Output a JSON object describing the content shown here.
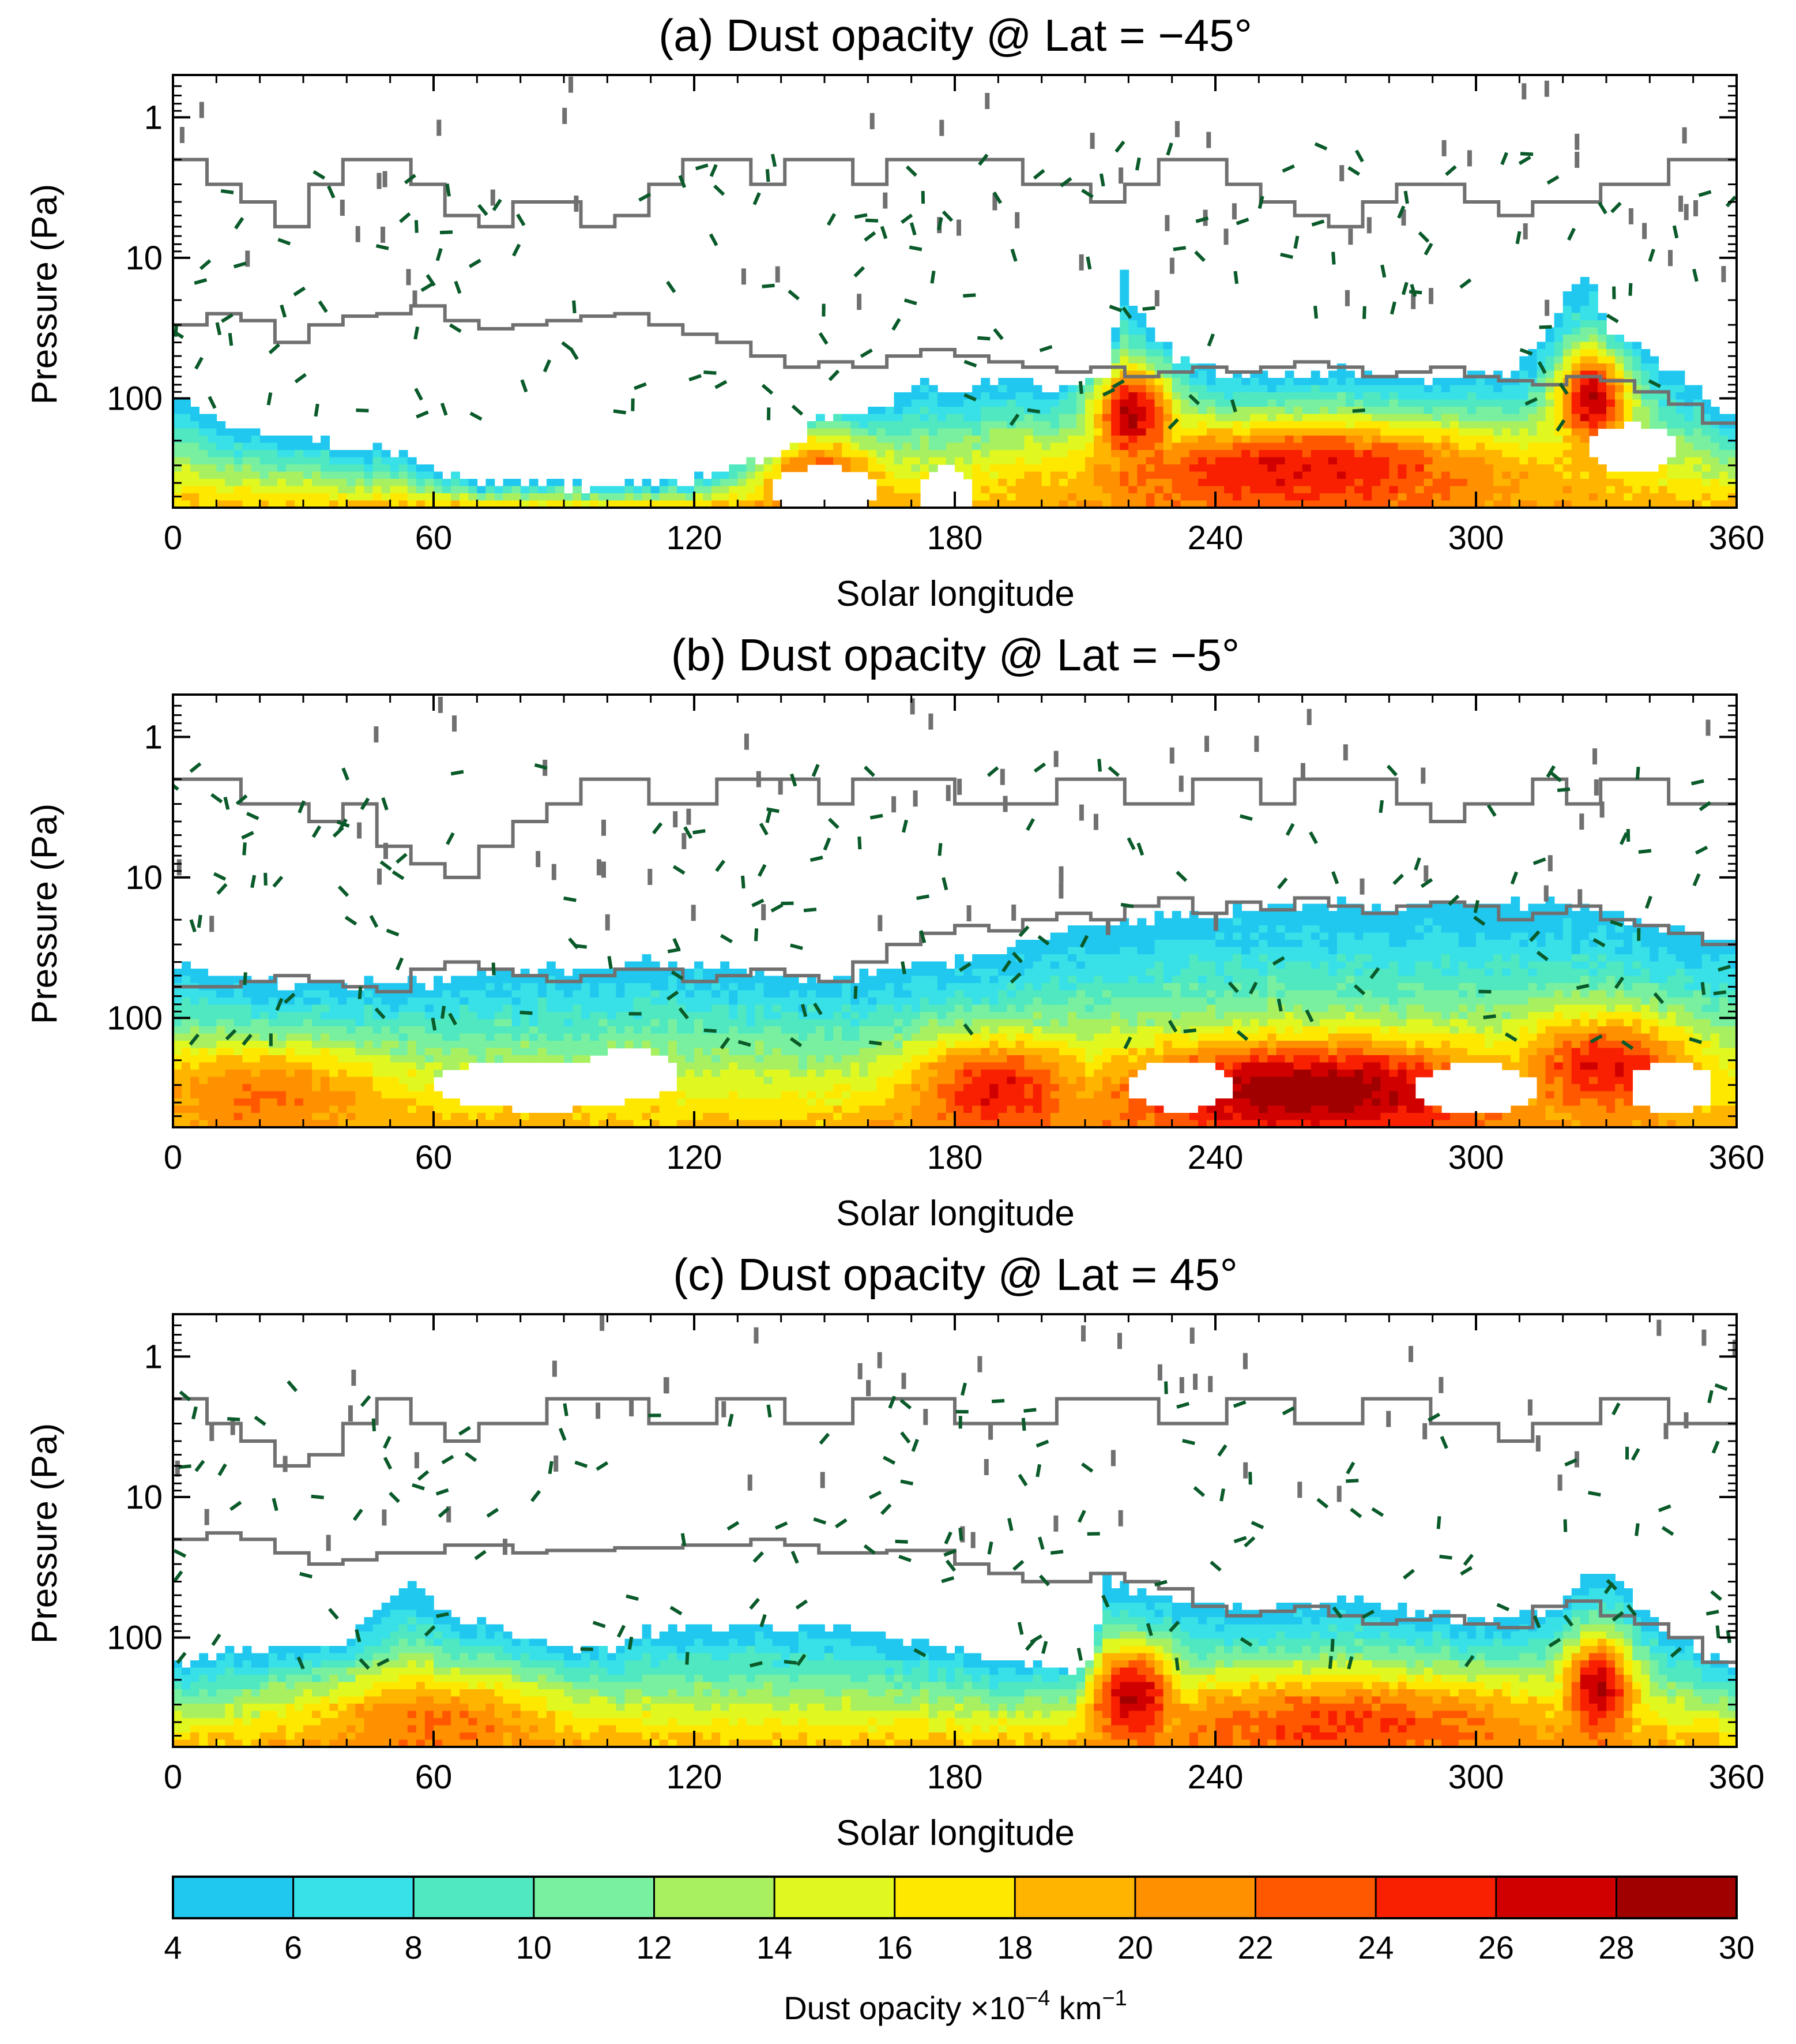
{
  "chart_data": [
    {
      "type": "heatmap",
      "panel": "a",
      "title": "(a) Dust opacity @ Lat = −45°",
      "xlabel": "Solar longitude",
      "ylabel": "Pressure (Pa)",
      "xlim": [
        0,
        360
      ],
      "ylim_pa": [
        0.5,
        600
      ],
      "yscale": "log",
      "x_ticks": [
        "0",
        "60",
        "120",
        "180",
        "240",
        "300",
        "360"
      ],
      "y_ticks": [
        {
          "value": 1,
          "label": "1"
        },
        {
          "value": 10,
          "label": "10"
        },
        {
          "value": 100,
          "label": "100"
        }
      ],
      "dust_top_pa": [
        [
          0,
          100
        ],
        [
          10,
          150
        ],
        [
          30,
          200
        ],
        [
          50,
          240
        ],
        [
          70,
          400
        ],
        [
          100,
          420
        ],
        [
          120,
          380
        ],
        [
          140,
          260
        ],
        [
          150,
          130
        ],
        [
          165,
          120
        ],
        [
          172,
          75
        ],
        [
          180,
          90
        ],
        [
          190,
          70
        ],
        [
          205,
          85
        ],
        [
          216,
          60
        ],
        [
          219,
          13
        ],
        [
          222,
          25
        ],
        [
          232,
          55
        ],
        [
          250,
          70
        ],
        [
          270,
          62
        ],
        [
          290,
          75
        ],
        [
          310,
          60
        ],
        [
          326,
          11
        ],
        [
          330,
          30
        ],
        [
          340,
          50
        ],
        [
          350,
          80
        ],
        [
          360,
          150
        ]
      ],
      "dust_peaks": [
        {
          "ls": 148,
          "p": 380,
          "level": 24,
          "width": 14
        },
        {
          "ls": 221,
          "p": 130,
          "level": 28,
          "width": 10
        },
        {
          "ls": 327,
          "p": 100,
          "level": 28,
          "width": 8
        },
        {
          "ls": 260,
          "p": 320,
          "level": 26,
          "width": 50
        }
      ],
      "dust_holes": [
        {
          "ls": 150,
          "p": 460,
          "width": 12
        },
        {
          "ls": 178,
          "p": 470,
          "width": 6
        },
        {
          "ls": 336,
          "p": 230,
          "width": 10
        }
      ],
      "gray_contour_pa": [
        2,
        3,
        4,
        6,
        3,
        2,
        2,
        3,
        5,
        6,
        4,
        4,
        6,
        5,
        3,
        2,
        2,
        3,
        2,
        2,
        3,
        2,
        2,
        2,
        2,
        3,
        3,
        4,
        3,
        2,
        2,
        3,
        4,
        5,
        6,
        4,
        3,
        3,
        4,
        5,
        4,
        4,
        3,
        3,
        2,
        2
      ],
      "gray_contour_pa_low": [
        30,
        25,
        28,
        40,
        30,
        26,
        25,
        22,
        28,
        32,
        30,
        28,
        26,
        25,
        30,
        35,
        40,
        50,
        60,
        55,
        60,
        50,
        45,
        50,
        55,
        60,
        65,
        60,
        70,
        65,
        60,
        65,
        60,
        55,
        60,
        70,
        65,
        60,
        70,
        75,
        80,
        70,
        75,
        90,
        110,
        150
      ]
    },
    {
      "type": "heatmap",
      "panel": "b",
      "title": "(b) Dust opacity @ Lat =  −5°",
      "xlabel": "Solar longitude",
      "ylabel": "Pressure (Pa)",
      "xlim": [
        0,
        360
      ],
      "ylim_pa": [
        0.5,
        600
      ],
      "yscale": "log",
      "x_ticks": [
        "0",
        "60",
        "120",
        "180",
        "240",
        "300",
        "360"
      ],
      "y_ticks": [
        {
          "value": 1,
          "label": "1"
        },
        {
          "value": 10,
          "label": "10"
        },
        {
          "value": 100,
          "label": "100"
        }
      ],
      "dust_top_pa": [
        [
          0,
          40
        ],
        [
          20,
          55
        ],
        [
          40,
          60
        ],
        [
          60,
          55
        ],
        [
          70,
          50
        ],
        [
          90,
          45
        ],
        [
          110,
          40
        ],
        [
          130,
          45
        ],
        [
          150,
          55
        ],
        [
          170,
          45
        ],
        [
          190,
          35
        ],
        [
          210,
          22
        ],
        [
          240,
          17
        ],
        [
          270,
          16
        ],
        [
          300,
          16
        ],
        [
          320,
          15
        ],
        [
          340,
          22
        ],
        [
          360,
          28
        ]
      ],
      "dust_peaks": [
        {
          "ls": 20,
          "p": 350,
          "level": 22,
          "width": 30
        },
        {
          "ls": 190,
          "p": 320,
          "level": 26,
          "width": 20
        },
        {
          "ls": 262,
          "p": 330,
          "level": 30,
          "width": 45
        },
        {
          "ls": 330,
          "p": 220,
          "level": 26,
          "width": 20
        }
      ],
      "dust_holes": [
        {
          "ls": 85,
          "p": 300,
          "width": 25
        },
        {
          "ls": 105,
          "p": 250,
          "width": 12
        },
        {
          "ls": 232,
          "p": 300,
          "width": 12
        },
        {
          "ls": 300,
          "p": 320,
          "width": 14
        },
        {
          "ls": 345,
          "p": 310,
          "width": 10
        }
      ],
      "gray_contour_pa": [
        2,
        2,
        3,
        3,
        4,
        3,
        6,
        8,
        10,
        6,
        4,
        3,
        2,
        2,
        3,
        3,
        2,
        2,
        2,
        3,
        2,
        2,
        2,
        3,
        3,
        3,
        2,
        2,
        3,
        3,
        2,
        2,
        3,
        2,
        2,
        2,
        3,
        4,
        3,
        3,
        2,
        3,
        2,
        2,
        3,
        3
      ],
      "gray_contour_pa_low": [
        60,
        60,
        55,
        50,
        55,
        60,
        65,
        45,
        40,
        45,
        50,
        55,
        50,
        45,
        45,
        55,
        50,
        45,
        50,
        55,
        40,
        30,
        25,
        22,
        24,
        20,
        18,
        20,
        16,
        14,
        18,
        15,
        17,
        14,
        16,
        18,
        16,
        15,
        16,
        20,
        18,
        16,
        20,
        22,
        25,
        30
      ]
    },
    {
      "type": "heatmap",
      "panel": "c",
      "title": "(c) Dust opacity @ Lat =  45°",
      "xlabel": "Solar longitude",
      "ylabel": "Pressure (Pa)",
      "xlim": [
        0,
        360
      ],
      "ylim_pa": [
        0.5,
        600
      ],
      "yscale": "log",
      "x_ticks": [
        "0",
        "60",
        "120",
        "180",
        "240",
        "300",
        "360"
      ],
      "y_ticks": [
        {
          "value": 1,
          "label": "1"
        },
        {
          "value": 10,
          "label": "10"
        },
        {
          "value": 100,
          "label": "100"
        }
      ],
      "dust_top_pa": [
        [
          0,
          150
        ],
        [
          20,
          120
        ],
        [
          40,
          110
        ],
        [
          50,
          55
        ],
        [
          55,
          35
        ],
        [
          62,
          70
        ],
        [
          70,
          75
        ],
        [
          90,
          120
        ],
        [
          100,
          120
        ],
        [
          110,
          90
        ],
        [
          130,
          85
        ],
        [
          150,
          85
        ],
        [
          170,
          100
        ],
        [
          190,
          150
        ],
        [
          210,
          180
        ],
        [
          215,
          40
        ],
        [
          220,
          45
        ],
        [
          240,
          60
        ],
        [
          270,
          55
        ],
        [
          300,
          75
        ],
        [
          320,
          60
        ],
        [
          328,
          30
        ],
        [
          340,
          70
        ],
        [
          350,
          120
        ],
        [
          360,
          160
        ]
      ],
      "dust_peaks": [
        {
          "ls": 221,
          "p": 260,
          "level": 28,
          "width": 10
        },
        {
          "ls": 328,
          "p": 230,
          "level": 28,
          "width": 8
        },
        {
          "ls": 270,
          "p": 420,
          "level": 24,
          "width": 50
        },
        {
          "ls": 60,
          "p": 420,
          "level": 22,
          "width": 30
        }
      ],
      "dust_holes": [],
      "gray_contour_pa": [
        2,
        3,
        4,
        6,
        5,
        3,
        2,
        3,
        4,
        3,
        3,
        2,
        2,
        2,
        3,
        3,
        2,
        2,
        3,
        3,
        2,
        2,
        2,
        3,
        3,
        3,
        2,
        2,
        2,
        3,
        3,
        2,
        2,
        3,
        3,
        2,
        2,
        3,
        3,
        4,
        3,
        3,
        2,
        2,
        3,
        3
      ],
      "gray_contour_pa_low": [
        20,
        18,
        20,
        25,
        30,
        28,
        25,
        25,
        22,
        22,
        25,
        24,
        24,
        23,
        23,
        22,
        22,
        20,
        22,
        25,
        25,
        24,
        24,
        30,
        35,
        40,
        40,
        35,
        40,
        45,
        60,
        70,
        65,
        60,
        70,
        80,
        75,
        70,
        80,
        85,
        60,
        55,
        70,
        80,
        100,
        150
      ]
    }
  ],
  "colorbar": {
    "label": "Dust opacity ×10⁻⁴ km⁻¹",
    "label_main": "Dust opacity ×10",
    "label_exp": "−4",
    "label_unit": " km",
    "label_unit_exp": "−1",
    "levels": [
      4,
      6,
      8,
      10,
      12,
      14,
      16,
      18,
      20,
      22,
      24,
      26,
      28,
      30
    ],
    "tick_labels": [
      "4",
      "6",
      "8",
      "10",
      "12",
      "14",
      "16",
      "18",
      "20",
      "22",
      "24",
      "26",
      "28",
      "30"
    ],
    "colors": [
      "#20c8f0",
      "#38e0e8",
      "#50e8c0",
      "#78f0a0",
      "#a8f060",
      "#e0f820",
      "#ffe800",
      "#ffb400",
      "#ff9000",
      "#ff5800",
      "#f82000",
      "#d00000",
      "#a00000"
    ]
  },
  "contour_colors": {
    "gray": "#707070",
    "dashed_green": "#0a5a2a"
  }
}
